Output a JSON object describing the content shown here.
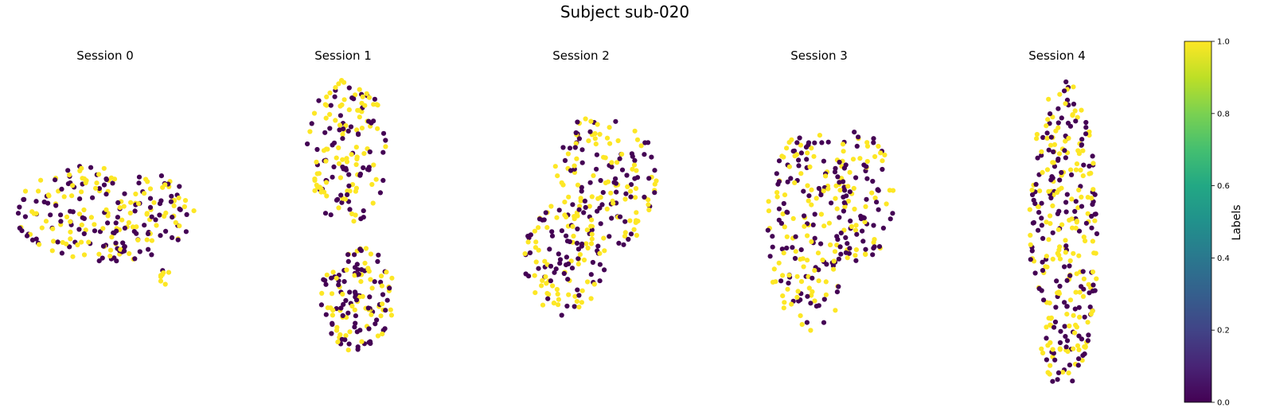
{
  "figure": {
    "title": "Subject sub-020"
  },
  "colorbar": {
    "label": "Labels",
    "ticks": [
      "0.0",
      "0.2",
      "0.4",
      "0.6",
      "0.8",
      "1.0"
    ],
    "range": [
      0,
      1
    ],
    "colormap": "viridis"
  },
  "colors": {
    "label_0": "#440154",
    "label_1": "#fde725"
  },
  "chart_data": [
    {
      "type": "scatter",
      "title": "Session 0",
      "axes_visible": false,
      "color_by": "Labels",
      "clusters": [
        {
          "cx": 0.5,
          "cy": 0.4,
          "rx": 0.48,
          "ry": 0.28,
          "n": 240,
          "label_1_share": 0.5,
          "seed": 11
        },
        {
          "cx": 0.82,
          "cy": 0.78,
          "rx": 0.03,
          "ry": 0.1,
          "n": 8,
          "label_1_share": 0.8,
          "seed": 12
        }
      ]
    },
    {
      "type": "scatter",
      "title": "Session 1",
      "axes_visible": false,
      "color_by": "Labels",
      "clusters": [
        {
          "cx": 0.5,
          "cy": 0.26,
          "rx": 0.42,
          "ry": 0.25,
          "n": 160,
          "label_1_share": 0.55,
          "seed": 21
        },
        {
          "cx": 0.62,
          "cy": 0.76,
          "rx": 0.4,
          "ry": 0.18,
          "n": 140,
          "label_1_share": 0.5,
          "seed": 22
        }
      ]
    },
    {
      "type": "scatter",
      "title": "Session 2",
      "axes_visible": false,
      "color_by": "Labels",
      "clusters": [
        {
          "cx": 0.62,
          "cy": 0.35,
          "rx": 0.38,
          "ry": 0.32,
          "n": 160,
          "label_1_share": 0.55,
          "seed": 31
        },
        {
          "cx": 0.32,
          "cy": 0.68,
          "rx": 0.3,
          "ry": 0.26,
          "n": 120,
          "label_1_share": 0.5,
          "seed": 32
        }
      ]
    },
    {
      "type": "scatter",
      "title": "Session 3",
      "axes_visible": false,
      "color_by": "Labels",
      "clusters": [
        {
          "cx": 0.32,
          "cy": 0.5,
          "rx": 0.34,
          "ry": 0.42,
          "n": 190,
          "label_1_share": 0.5,
          "seed": 41
        },
        {
          "cx": 0.72,
          "cy": 0.36,
          "rx": 0.26,
          "ry": 0.28,
          "n": 100,
          "label_1_share": 0.5,
          "seed": 42
        }
      ]
    },
    {
      "type": "scatter",
      "title": "Session 4",
      "axes_visible": false,
      "color_by": "Labels",
      "clusters": [
        {
          "cx": 0.5,
          "cy": 0.5,
          "rx": 0.45,
          "ry": 0.5,
          "n": 320,
          "label_1_share": 0.5,
          "seed": 51
        }
      ]
    }
  ]
}
